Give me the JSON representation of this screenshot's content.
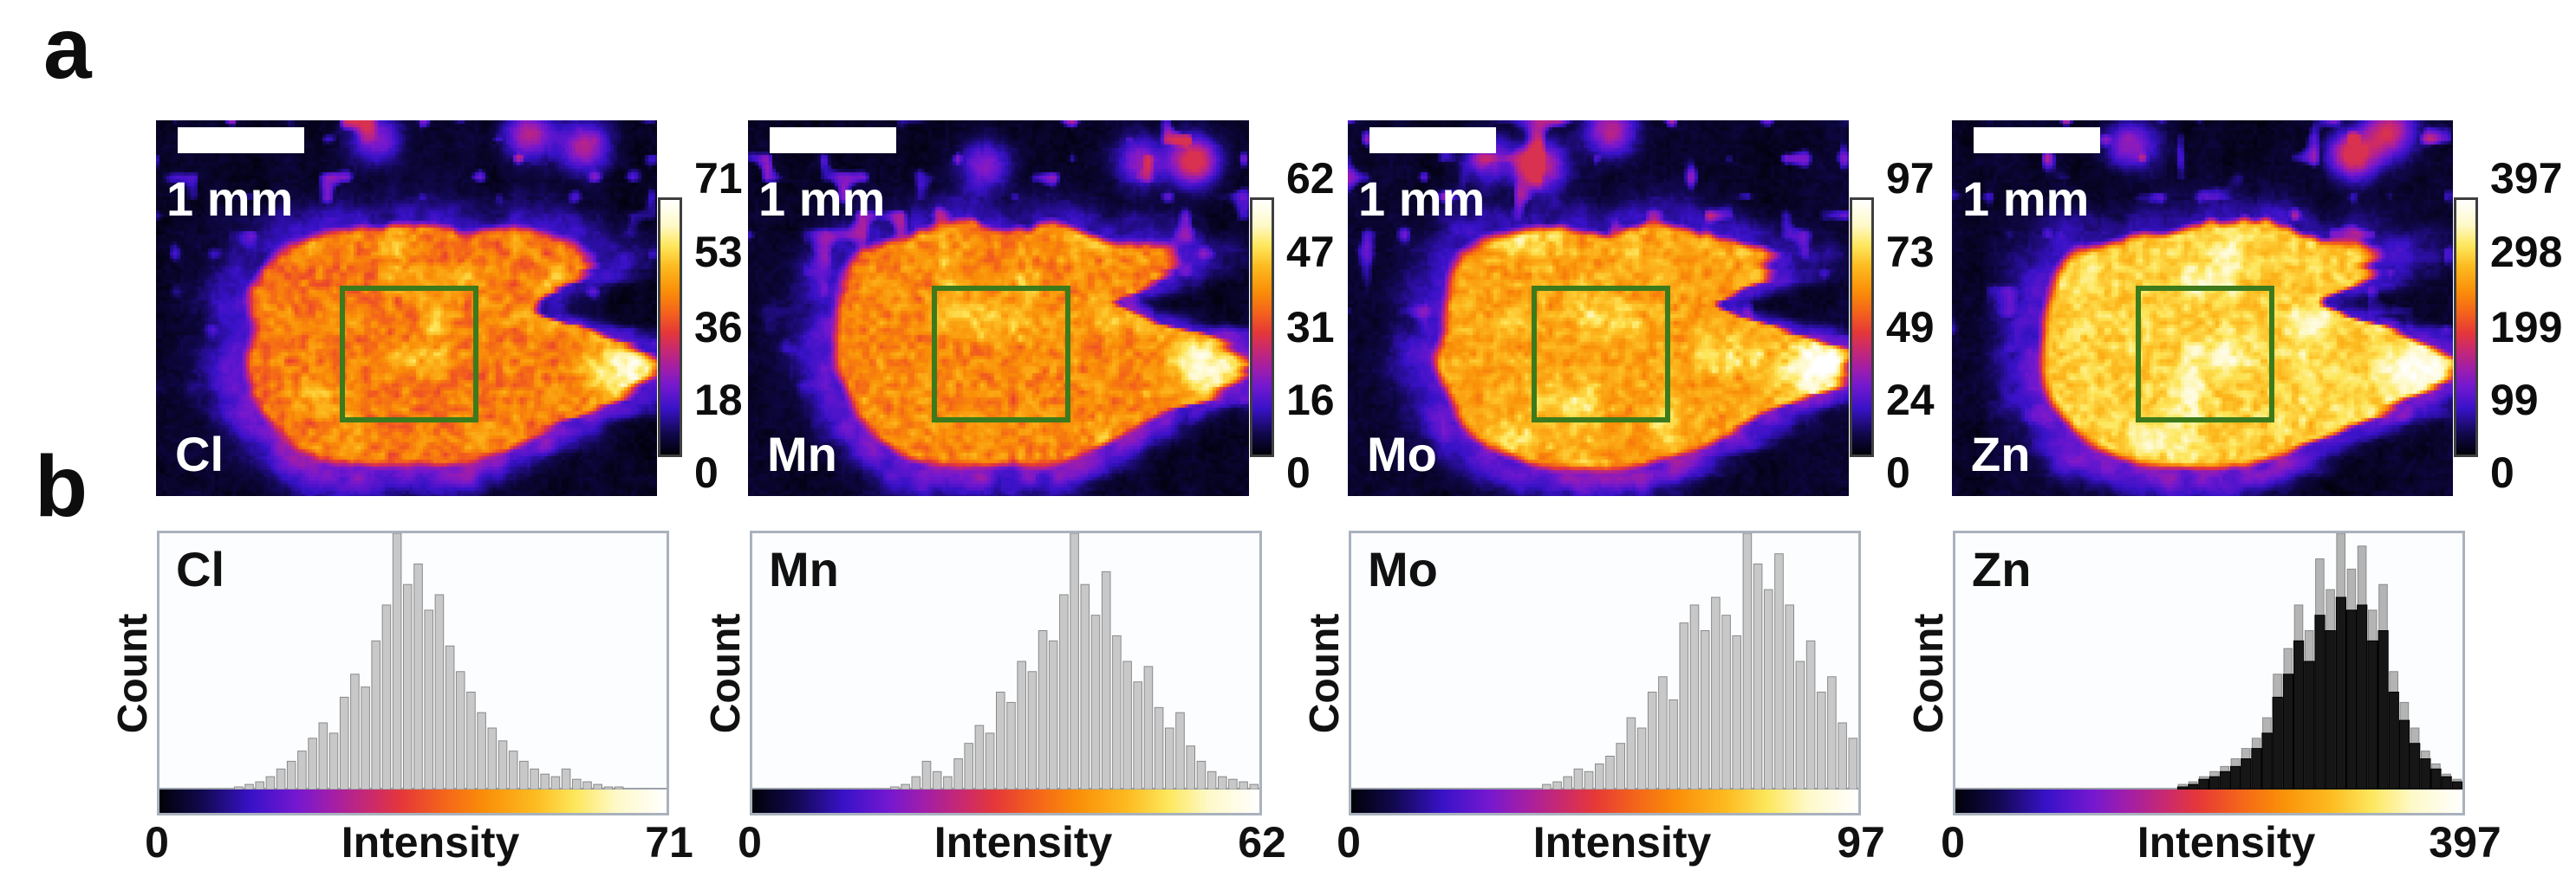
{
  "panels": {
    "a_label": "a",
    "b_label": "b"
  },
  "colors": {
    "map_background": "#05051a",
    "roi_green": "#3c7a1b",
    "scalebar_white": "#ffffff",
    "histogram_bar_fill": "#c8c8c8",
    "histogram_bar_edge": "#8a8a8a",
    "zn_outer_bar_fill": "#b4b4b4",
    "zn_inner_bar_fill": "#161616",
    "box_border": "#a9b2bd",
    "colormap_stops": [
      [
        0.0,
        "#010108"
      ],
      [
        0.08,
        "#10084a"
      ],
      [
        0.18,
        "#3812c8"
      ],
      [
        0.27,
        "#7418d0"
      ],
      [
        0.34,
        "#a21ea8"
      ],
      [
        0.42,
        "#cc2a6a"
      ],
      [
        0.48,
        "#e63838"
      ],
      [
        0.56,
        "#f4641a"
      ],
      [
        0.64,
        "#fa8e08"
      ],
      [
        0.74,
        "#fdbb20"
      ],
      [
        0.82,
        "#fde75c"
      ],
      [
        0.9,
        "#fef9c8"
      ],
      [
        1.0,
        "#ffffff"
      ]
    ]
  },
  "chart_data": {
    "maps": [
      {
        "element": "Cl",
        "scale_bar_label": "1 mm",
        "intensity_min": 0,
        "intensity_max": 71,
        "colorbar_ticks": [
          "71",
          "53",
          "36",
          "18",
          "0"
        ],
        "roi": "green-rectangle"
      },
      {
        "element": "Mn",
        "scale_bar_label": "1 mm",
        "intensity_min": 0,
        "intensity_max": 62,
        "colorbar_ticks": [
          "62",
          "47",
          "31",
          "16",
          "0"
        ],
        "roi": "green-rectangle"
      },
      {
        "element": "Mo",
        "scale_bar_label": "1 mm",
        "intensity_min": 0,
        "intensity_max": 97,
        "colorbar_ticks": [
          "97",
          "73",
          "49",
          "24",
          "0"
        ],
        "roi": "green-rectangle"
      },
      {
        "element": "Zn",
        "scale_bar_label": "1 mm",
        "intensity_min": 0,
        "intensity_max": 397,
        "colorbar_ticks": [
          "397",
          "298",
          "199",
          "99",
          "0"
        ],
        "roi": "green-rectangle"
      }
    ],
    "histograms": [
      {
        "type": "bar",
        "element": "Cl",
        "ylabel": "Count",
        "xlabel": "Intensity",
        "xmin_label": "0",
        "xmax_label": "71",
        "bars_norm": [
          0,
          0,
          0,
          0,
          0,
          0,
          0,
          0.01,
          0.02,
          0.03,
          0.05,
          0.08,
          0.11,
          0.15,
          0.2,
          0.26,
          0.22,
          0.36,
          0.45,
          0.4,
          0.58,
          0.72,
          1.0,
          0.8,
          0.88,
          0.7,
          0.76,
          0.56,
          0.46,
          0.38,
          0.3,
          0.24,
          0.19,
          0.15,
          0.11,
          0.08,
          0.06,
          0.05,
          0.08,
          0.04,
          0.03,
          0.02,
          0.01,
          0.01,
          0,
          0,
          0,
          0
        ]
      },
      {
        "type": "bar",
        "element": "Mn",
        "ylabel": "Count",
        "xlabel": "Intensity",
        "xmin_label": "0",
        "xmax_label": "62",
        "bars_norm": [
          0,
          0,
          0,
          0,
          0,
          0,
          0,
          0,
          0,
          0,
          0,
          0,
          0,
          0.01,
          0.02,
          0.05,
          0.11,
          0.07,
          0.05,
          0.12,
          0.18,
          0.25,
          0.22,
          0.38,
          0.34,
          0.5,
          0.46,
          0.62,
          0.58,
          0.76,
          1.0,
          0.8,
          0.68,
          0.85,
          0.6,
          0.5,
          0.42,
          0.48,
          0.32,
          0.24,
          0.3,
          0.17,
          0.11,
          0.07,
          0.05,
          0.04,
          0.03,
          0.02
        ]
      },
      {
        "type": "bar",
        "element": "Mo",
        "ylabel": "Count",
        "xlabel": "Intensity",
        "xmin_label": "0",
        "xmax_label": "97",
        "bars_norm": [
          0,
          0,
          0,
          0,
          0,
          0,
          0,
          0,
          0,
          0,
          0,
          0,
          0,
          0,
          0,
          0,
          0,
          0,
          0.02,
          0.03,
          0.05,
          0.08,
          0.07,
          0.1,
          0.13,
          0.18,
          0.28,
          0.24,
          0.38,
          0.44,
          0.35,
          0.65,
          0.72,
          0.62,
          0.75,
          0.68,
          0.6,
          1.0,
          0.88,
          0.78,
          0.92,
          0.72,
          0.5,
          0.58,
          0.38,
          0.44,
          0.26,
          0.2
        ]
      },
      {
        "type": "bar",
        "element": "Zn",
        "ylabel": "Count",
        "xlabel": "Intensity",
        "xmin_label": "0",
        "xmax_label": "397",
        "series": [
          {
            "name": "outer",
            "values": [
              0,
              0,
              0,
              0,
              0,
              0,
              0,
              0,
              0,
              0,
              0,
              0,
              0,
              0,
              0,
              0,
              0,
              0,
              0,
              0,
              0,
              0.02,
              0.03,
              0.05,
              0.07,
              0.09,
              0.12,
              0.16,
              0.2,
              0.28,
              0.45,
              0.55,
              0.72,
              0.62,
              0.9,
              0.78,
              1.0,
              0.86,
              0.95,
              0.7,
              0.8,
              0.46,
              0.34,
              0.24,
              0.15,
              0.1,
              0.06,
              0.04
            ]
          },
          {
            "name": "inner",
            "values": [
              0,
              0,
              0,
              0,
              0,
              0,
              0,
              0,
              0,
              0,
              0,
              0,
              0,
              0,
              0,
              0,
              0,
              0,
              0,
              0,
              0,
              0.01,
              0.02,
              0.04,
              0.05,
              0.07,
              0.09,
              0.12,
              0.16,
              0.22,
              0.36,
              0.45,
              0.58,
              0.5,
              0.68,
              0.62,
              0.75,
              0.7,
              0.72,
              0.58,
              0.62,
              0.38,
              0.27,
              0.18,
              0.12,
              0.08,
              0.05,
              0.03
            ]
          }
        ]
      }
    ]
  }
}
